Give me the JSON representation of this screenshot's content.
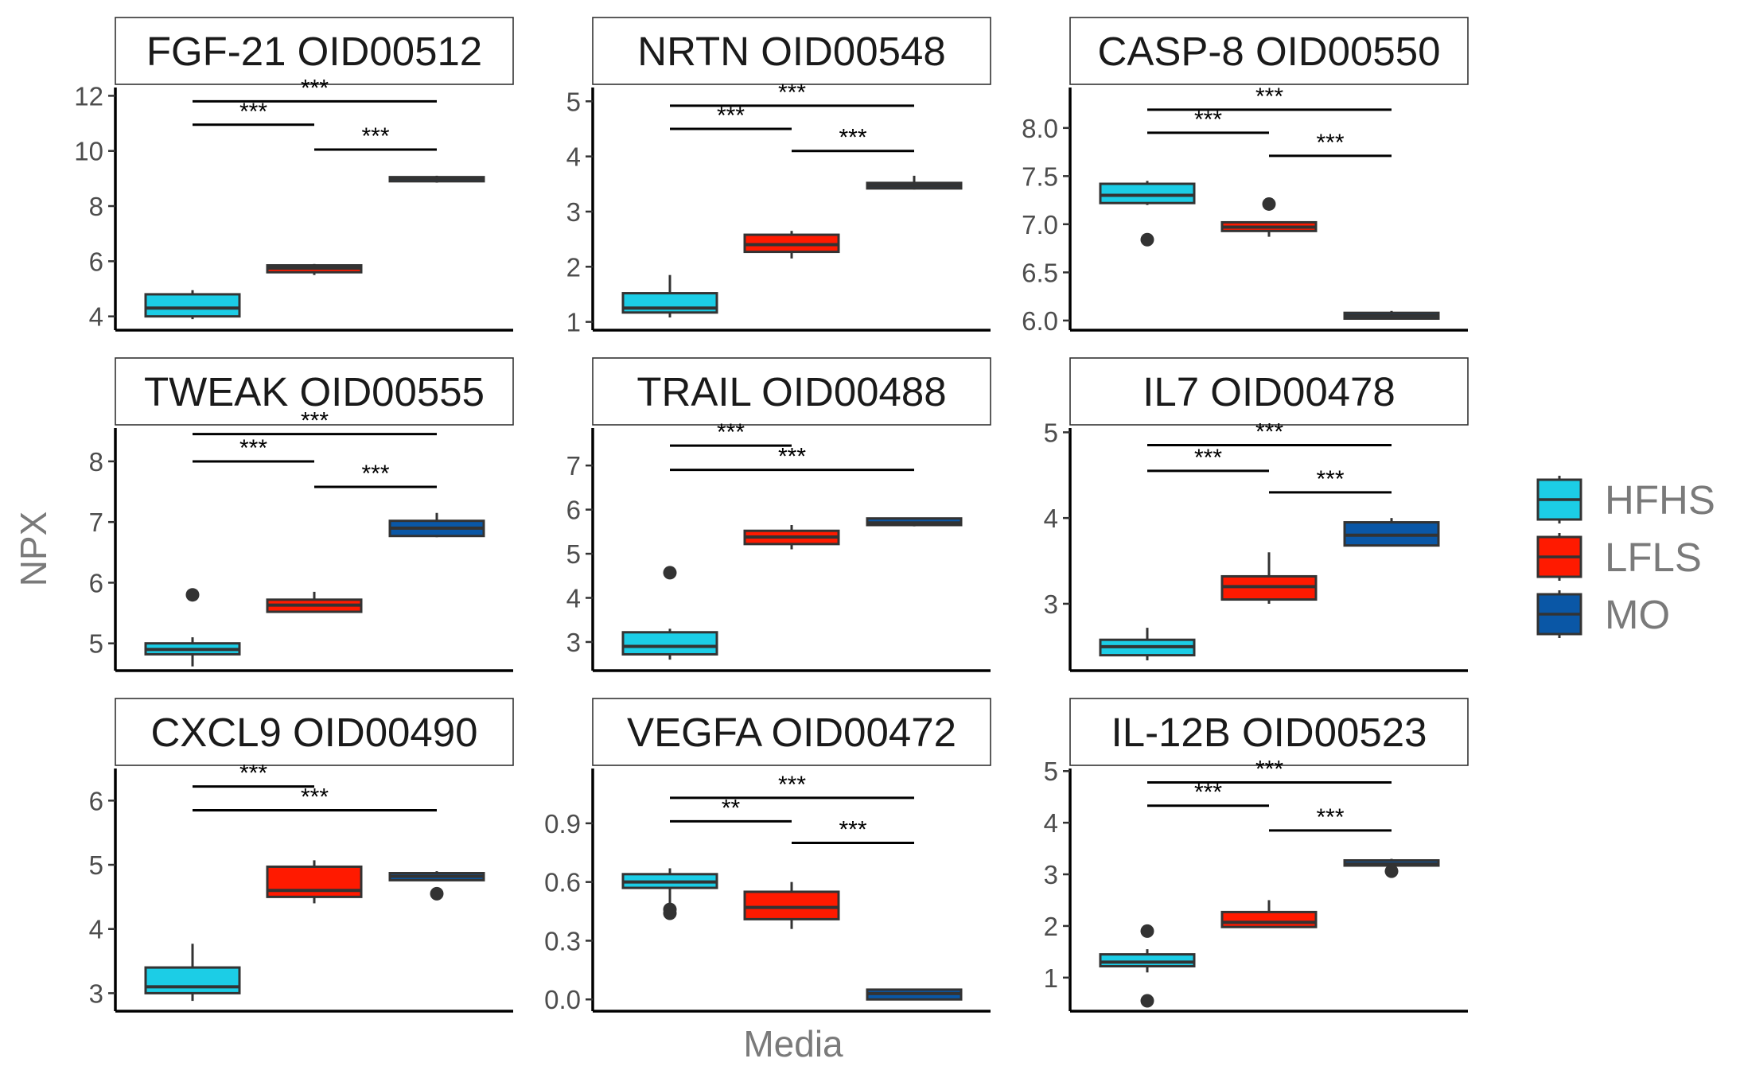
{
  "figure": {
    "ylabel": "NPX",
    "xlabel": "Media"
  },
  "legend": {
    "items": [
      {
        "label": "HFHS",
        "color": "#1CCDE6"
      },
      {
        "label": "LFLS",
        "color": "#FF1A00"
      },
      {
        "label": "MO",
        "color": "#0A57A6"
      }
    ]
  },
  "chart_data": [
    {
      "type": "box",
      "title": "FGF-21 OID00512",
      "ylim": [
        3.5,
        12.3
      ],
      "ticks": [
        4,
        6,
        8,
        10,
        12
      ],
      "tick_labels": [
        "4",
        "6",
        "8",
        "10",
        "12"
      ],
      "groups": [
        {
          "group": "HFHS",
          "whislo": 3.9,
          "q1": 4.0,
          "med": 4.3,
          "q3": 4.8,
          "whishi": 4.95,
          "outliers": []
        },
        {
          "group": "LFLS",
          "whislo": 5.5,
          "q1": 5.6,
          "med": 5.75,
          "q3": 5.85,
          "whishi": 5.9,
          "outliers": []
        },
        {
          "group": "MO",
          "whislo": 8.85,
          "q1": 8.9,
          "med": 9.0,
          "q3": 9.05,
          "whishi": 9.1,
          "outliers": []
        }
      ],
      "comparisons": [
        {
          "from": 0,
          "to": 2,
          "y": 11.8,
          "label": "***"
        },
        {
          "from": 0,
          "to": 1,
          "y": 10.95,
          "label": "***"
        },
        {
          "from": 1,
          "to": 2,
          "y": 10.05,
          "label": "***"
        }
      ]
    },
    {
      "type": "box",
      "title": "NRTN OID00548",
      "ylim": [
        0.85,
        5.25
      ],
      "ticks": [
        1,
        2,
        3,
        4,
        5
      ],
      "tick_labels": [
        "1",
        "2",
        "3",
        "4",
        "5"
      ],
      "groups": [
        {
          "group": "HFHS",
          "whislo": 1.08,
          "q1": 1.17,
          "med": 1.25,
          "q3": 1.52,
          "whishi": 1.85,
          "outliers": []
        },
        {
          "group": "LFLS",
          "whislo": 2.15,
          "q1": 2.27,
          "med": 2.4,
          "q3": 2.58,
          "whishi": 2.65,
          "outliers": []
        },
        {
          "group": "MO",
          "whislo": 3.4,
          "q1": 3.42,
          "med": 3.47,
          "q3": 3.52,
          "whishi": 3.65,
          "outliers": []
        }
      ],
      "comparisons": [
        {
          "from": 0,
          "to": 2,
          "y": 4.92,
          "label": "***"
        },
        {
          "from": 0,
          "to": 1,
          "y": 4.5,
          "label": "***"
        },
        {
          "from": 1,
          "to": 2,
          "y": 4.1,
          "label": "***"
        }
      ]
    },
    {
      "type": "box",
      "title": "CASP-8 OID00550",
      "ylim": [
        5.9,
        8.42
      ],
      "ticks": [
        6.0,
        6.5,
        7.0,
        7.5,
        8.0
      ],
      "tick_labels": [
        "6.0",
        "6.5",
        "7.0",
        "7.5",
        "8.0"
      ],
      "groups": [
        {
          "group": "HFHS",
          "whislo": 7.2,
          "q1": 7.22,
          "med": 7.3,
          "q3": 7.42,
          "whishi": 7.45,
          "outliers": [
            6.84
          ]
        },
        {
          "group": "LFLS",
          "whislo": 6.87,
          "q1": 6.93,
          "med": 6.97,
          "q3": 7.02,
          "whishi": 7.03,
          "outliers": [
            7.21
          ]
        },
        {
          "group": "MO",
          "whislo": 6.02,
          "q1": 6.02,
          "med": 6.05,
          "q3": 6.08,
          "whishi": 6.1,
          "outliers": []
        }
      ],
      "comparisons": [
        {
          "from": 0,
          "to": 2,
          "y": 8.19,
          "label": "***"
        },
        {
          "from": 0,
          "to": 1,
          "y": 7.95,
          "label": "***"
        },
        {
          "from": 1,
          "to": 2,
          "y": 7.71,
          "label": "***"
        }
      ]
    },
    {
      "type": "box",
      "title": "TWEAK OID00555",
      "ylim": [
        4.55,
        8.55
      ],
      "ticks": [
        5,
        6,
        7,
        8
      ],
      "tick_labels": [
        "5",
        "6",
        "7",
        "8"
      ],
      "groups": [
        {
          "group": "HFHS",
          "whislo": 4.62,
          "q1": 4.82,
          "med": 4.9,
          "q3": 5.0,
          "whishi": 5.1,
          "outliers": [
            5.8
          ]
        },
        {
          "group": "LFLS",
          "whislo": 5.52,
          "q1": 5.52,
          "med": 5.63,
          "q3": 5.72,
          "whishi": 5.85,
          "outliers": []
        },
        {
          "group": "MO",
          "whislo": 6.75,
          "q1": 6.77,
          "med": 6.9,
          "q3": 7.02,
          "whishi": 7.15,
          "outliers": []
        }
      ],
      "comparisons": [
        {
          "from": 0,
          "to": 2,
          "y": 8.45,
          "label": "***"
        },
        {
          "from": 0,
          "to": 1,
          "y": 8.0,
          "label": "***"
        },
        {
          "from": 1,
          "to": 2,
          "y": 7.58,
          "label": "***"
        }
      ]
    },
    {
      "type": "box",
      "title": "TRAIL OID00488",
      "ylim": [
        2.35,
        7.85
      ],
      "ticks": [
        3,
        4,
        5,
        6,
        7
      ],
      "tick_labels": [
        "3",
        "4",
        "5",
        "6",
        "7"
      ],
      "groups": [
        {
          "group": "HFHS",
          "whislo": 2.6,
          "q1": 2.72,
          "med": 2.9,
          "q3": 3.22,
          "whishi": 3.3,
          "outliers": [
            4.57
          ]
        },
        {
          "group": "LFLS",
          "whislo": 5.1,
          "q1": 5.22,
          "med": 5.38,
          "q3": 5.52,
          "whishi": 5.65,
          "outliers": []
        },
        {
          "group": "MO",
          "whislo": 5.62,
          "q1": 5.65,
          "med": 5.7,
          "q3": 5.8,
          "whishi": 5.82,
          "outliers": []
        }
      ],
      "comparisons": [
        {
          "from": 0,
          "to": 1,
          "y": 7.45,
          "label": "***"
        },
        {
          "from": 0,
          "to": 2,
          "y": 6.9,
          "label": "***"
        }
      ]
    },
    {
      "type": "box",
      "title": "IL7 OID00478",
      "ylim": [
        2.22,
        5.05
      ],
      "ticks": [
        3,
        4,
        5
      ],
      "tick_labels": [
        "3",
        "4",
        "5"
      ],
      "groups": [
        {
          "group": "HFHS",
          "whislo": 2.34,
          "q1": 2.4,
          "med": 2.5,
          "q3": 2.58,
          "whishi": 2.72,
          "outliers": []
        },
        {
          "group": "LFLS",
          "whislo": 3.0,
          "q1": 3.05,
          "med": 3.2,
          "q3": 3.32,
          "whishi": 3.6,
          "outliers": []
        },
        {
          "group": "MO",
          "whislo": 3.67,
          "q1": 3.68,
          "med": 3.8,
          "q3": 3.95,
          "whishi": 4.0,
          "outliers": []
        }
      ],
      "comparisons": [
        {
          "from": 0,
          "to": 2,
          "y": 4.85,
          "label": "***"
        },
        {
          "from": 0,
          "to": 1,
          "y": 4.55,
          "label": "***"
        },
        {
          "from": 1,
          "to": 2,
          "y": 4.3,
          "label": "***"
        }
      ]
    },
    {
      "type": "box",
      "title": "CXCL9 OID00490",
      "ylim": [
        2.72,
        6.5
      ],
      "ticks": [
        3,
        4,
        5,
        6
      ],
      "tick_labels": [
        "3",
        "4",
        "5",
        "6"
      ],
      "groups": [
        {
          "group": "HFHS",
          "whislo": 2.88,
          "q1": 3.0,
          "med": 3.1,
          "q3": 3.4,
          "whishi": 3.77,
          "outliers": []
        },
        {
          "group": "LFLS",
          "whislo": 4.4,
          "q1": 4.5,
          "med": 4.6,
          "q3": 4.97,
          "whishi": 5.07,
          "outliers": []
        },
        {
          "group": "MO",
          "whislo": 4.75,
          "q1": 4.76,
          "med": 4.82,
          "q3": 4.87,
          "whishi": 4.9,
          "outliers": [
            4.55
          ]
        }
      ],
      "comparisons": [
        {
          "from": 0,
          "to": 1,
          "y": 6.22,
          "label": "***"
        },
        {
          "from": 0,
          "to": 2,
          "y": 5.85,
          "label": "***"
        }
      ]
    },
    {
      "type": "box",
      "title": "VEGFA OID00472",
      "ylim": [
        -0.06,
        1.18
      ],
      "ticks": [
        0.0,
        0.3,
        0.6,
        0.9
      ],
      "tick_labels": [
        "0.0",
        "0.3",
        "0.6",
        "0.9"
      ],
      "groups": [
        {
          "group": "HFHS",
          "whislo": 0.45,
          "q1": 0.57,
          "med": 0.6,
          "q3": 0.64,
          "whishi": 0.67,
          "outliers": [
            0.44,
            0.46
          ]
        },
        {
          "group": "LFLS",
          "whislo": 0.36,
          "q1": 0.41,
          "med": 0.47,
          "q3": 0.55,
          "whishi": 0.6,
          "outliers": []
        },
        {
          "group": "MO",
          "whislo": 0.0,
          "q1": 0.0,
          "med": 0.03,
          "q3": 0.05,
          "whishi": 0.05,
          "outliers": []
        }
      ],
      "comparisons": [
        {
          "from": 0,
          "to": 2,
          "y": 1.03,
          "label": "***"
        },
        {
          "from": 0,
          "to": 1,
          "y": 0.91,
          "label": "**"
        },
        {
          "from": 1,
          "to": 2,
          "y": 0.8,
          "label": "***"
        }
      ]
    },
    {
      "type": "box",
      "title": "IL-12B OID00523",
      "ylim": [
        0.35,
        5.05
      ],
      "ticks": [
        1,
        2,
        3,
        4,
        5
      ],
      "tick_labels": [
        "1",
        "2",
        "3",
        "4",
        "5"
      ],
      "groups": [
        {
          "group": "HFHS",
          "whislo": 1.1,
          "q1": 1.22,
          "med": 1.3,
          "q3": 1.45,
          "whishi": 1.55,
          "outliers": [
            1.9,
            0.55
          ]
        },
        {
          "group": "LFLS",
          "whislo": 1.98,
          "q1": 1.98,
          "med": 2.07,
          "q3": 2.27,
          "whishi": 2.5,
          "outliers": []
        },
        {
          "group": "MO",
          "whislo": 3.15,
          "q1": 3.17,
          "med": 3.2,
          "q3": 3.27,
          "whishi": 3.3,
          "outliers": [
            3.06
          ]
        }
      ],
      "comparisons": [
        {
          "from": 0,
          "to": 2,
          "y": 4.78,
          "label": "***"
        },
        {
          "from": 0,
          "to": 1,
          "y": 4.33,
          "label": "***"
        },
        {
          "from": 1,
          "to": 2,
          "y": 3.85,
          "label": "***"
        }
      ]
    }
  ]
}
